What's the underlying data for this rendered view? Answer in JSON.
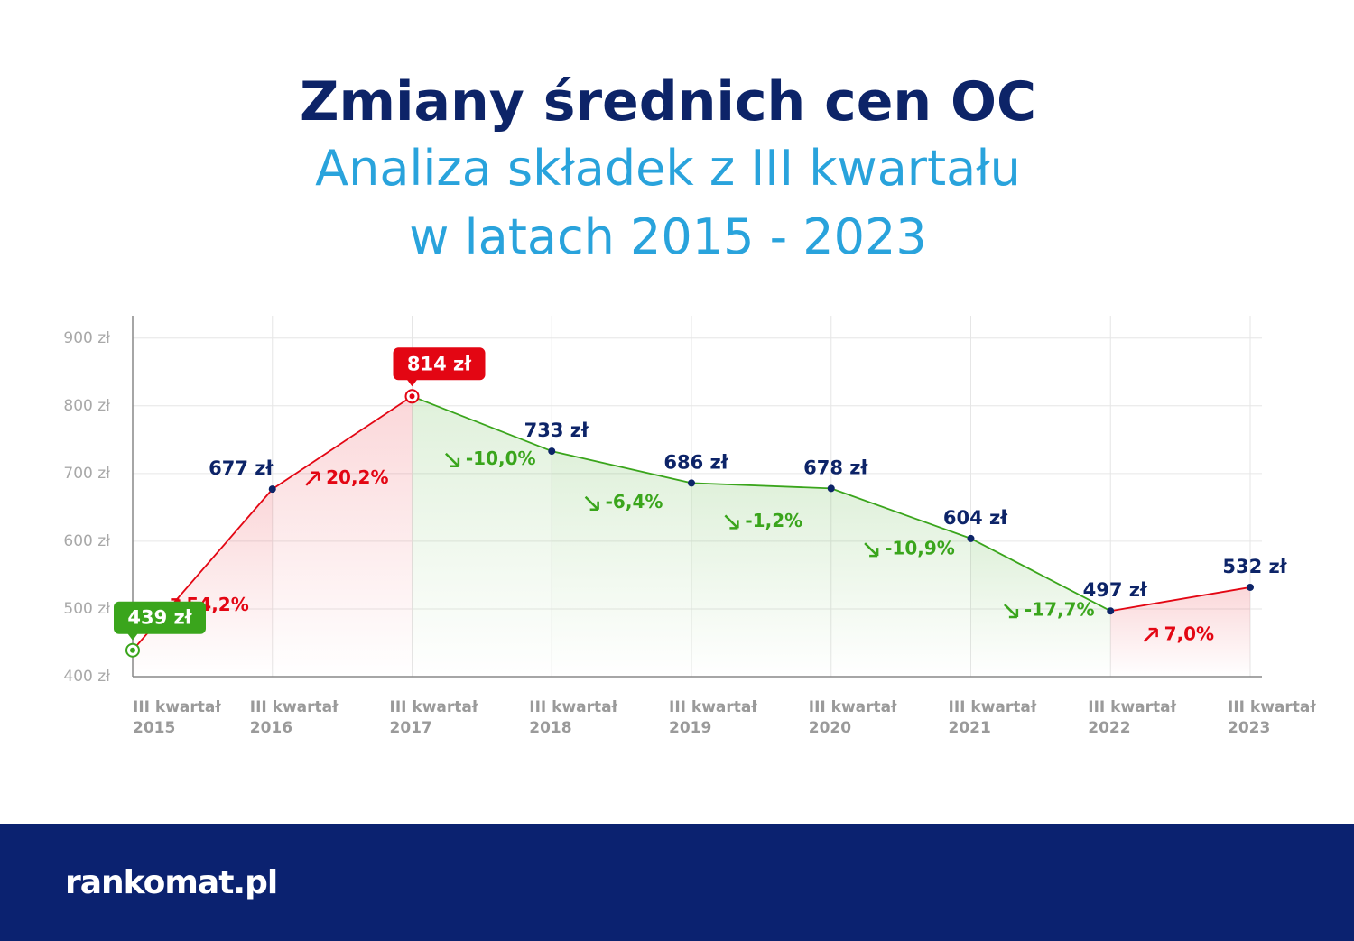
{
  "chart_data": {
    "type": "line",
    "title": "Zmiany średnich cen OC",
    "subtitle": [
      "Analiza składek z III kwartału",
      "w latach 2015 - 2023"
    ],
    "categories": [
      "III kwartał 2015",
      "III kwartał 2016",
      "III kwartał 2017",
      "III kwartał 2018",
      "III kwartał 2019",
      "III kwartał 2020",
      "III kwartał 2021",
      "III kwartał 2022",
      "III kwartał 2023"
    ],
    "values": [
      439,
      677,
      814,
      733,
      686,
      678,
      604,
      497,
      532
    ],
    "value_labels": [
      "439 zł",
      "677 zł",
      "814 zł",
      "733 zł",
      "686 zł",
      "678 zł",
      "604 zł",
      "497 zł",
      "532 zł"
    ],
    "changes": {
      "values": [
        54.2,
        20.2,
        -10.0,
        -6.4,
        -1.2,
        -10.9,
        -17.7,
        7.0
      ],
      "value_labels": [
        "54,2%",
        "20,2%",
        "-10,0%",
        "-6,4%",
        "-1,2%",
        "-10,9%",
        "-17,7%",
        "7,0%"
      ]
    },
    "ylim": [
      400,
      933
    ],
    "yticks": [
      {
        "value": 400,
        "label": "400 zł"
      },
      {
        "value": 500,
        "label": "500 zł"
      },
      {
        "value": 600,
        "label": "600 zł"
      },
      {
        "value": 700,
        "label": "700 zł"
      },
      {
        "value": 800,
        "label": "800 zł"
      },
      {
        "value": 900,
        "label": "900 zł"
      }
    ],
    "grid": true,
    "colors": {
      "rise": "#e30613",
      "fall": "#3aa51c",
      "label": "#0d2468"
    }
  },
  "footer": {
    "logo": "rankomat.pl"
  }
}
